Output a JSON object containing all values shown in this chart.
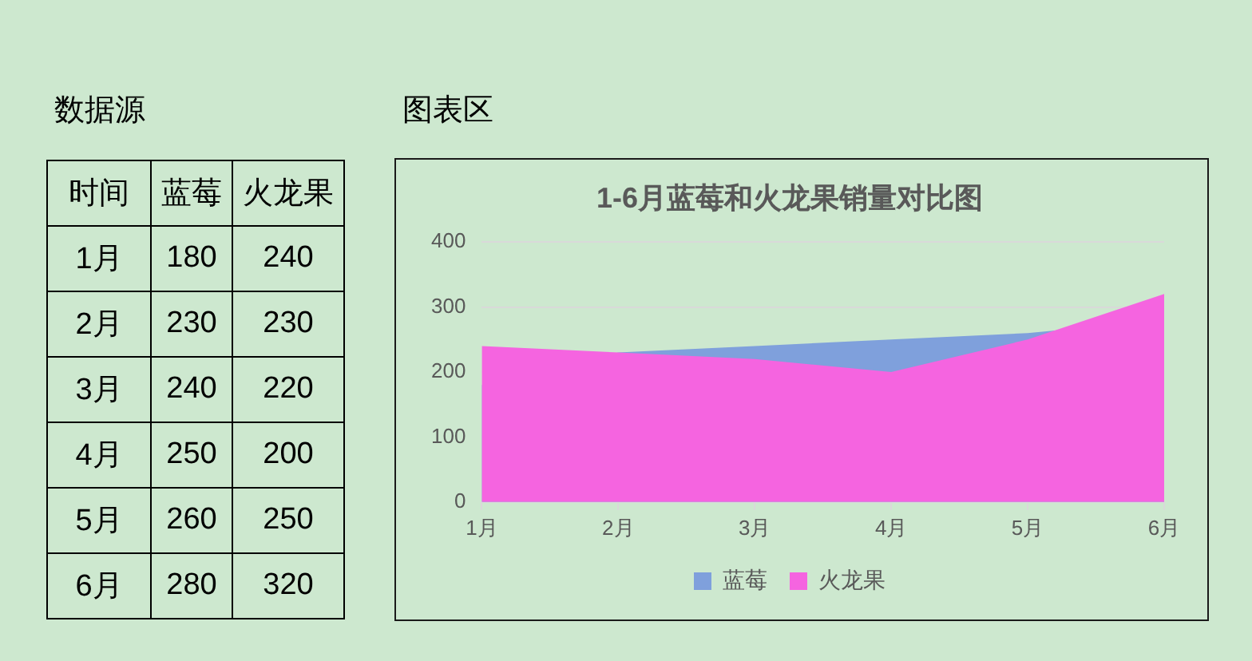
{
  "chart_data": [
    {
      "type": "heatmap",
      "title": "数据源",
      "ylabel": "时间",
      "categories": [
        "蓝莓",
        "火龙果"
      ],
      "y_categories": [
        "1月",
        "2月",
        "3月",
        "4月",
        "5月",
        "6月"
      ],
      "cells": [
        [
          180,
          240
        ],
        [
          230,
          230
        ],
        [
          240,
          220
        ],
        [
          250,
          200
        ],
        [
          260,
          250
        ],
        [
          280,
          320
        ]
      ],
      "data_labels": true
    },
    {
      "type": "area",
      "title": "1-6月蓝莓和火龙果销量对比图",
      "annotations": [
        "图表区"
      ],
      "categories": [
        "1月",
        "2月",
        "3月",
        "4月",
        "5月",
        "6月"
      ],
      "series": [
        {
          "name": "蓝莓",
          "color": "#7fa0dc",
          "values": [
            180,
            230,
            240,
            250,
            260,
            280
          ]
        },
        {
          "name": "火龙果",
          "color": "#f564e0",
          "values": [
            240,
            230,
            220,
            200,
            250,
            320
          ]
        }
      ],
      "ylim": [
        0,
        400
      ],
      "yticks": [
        0,
        100,
        200,
        300,
        400
      ],
      "grid": "y",
      "legend": "bottom"
    }
  ]
}
